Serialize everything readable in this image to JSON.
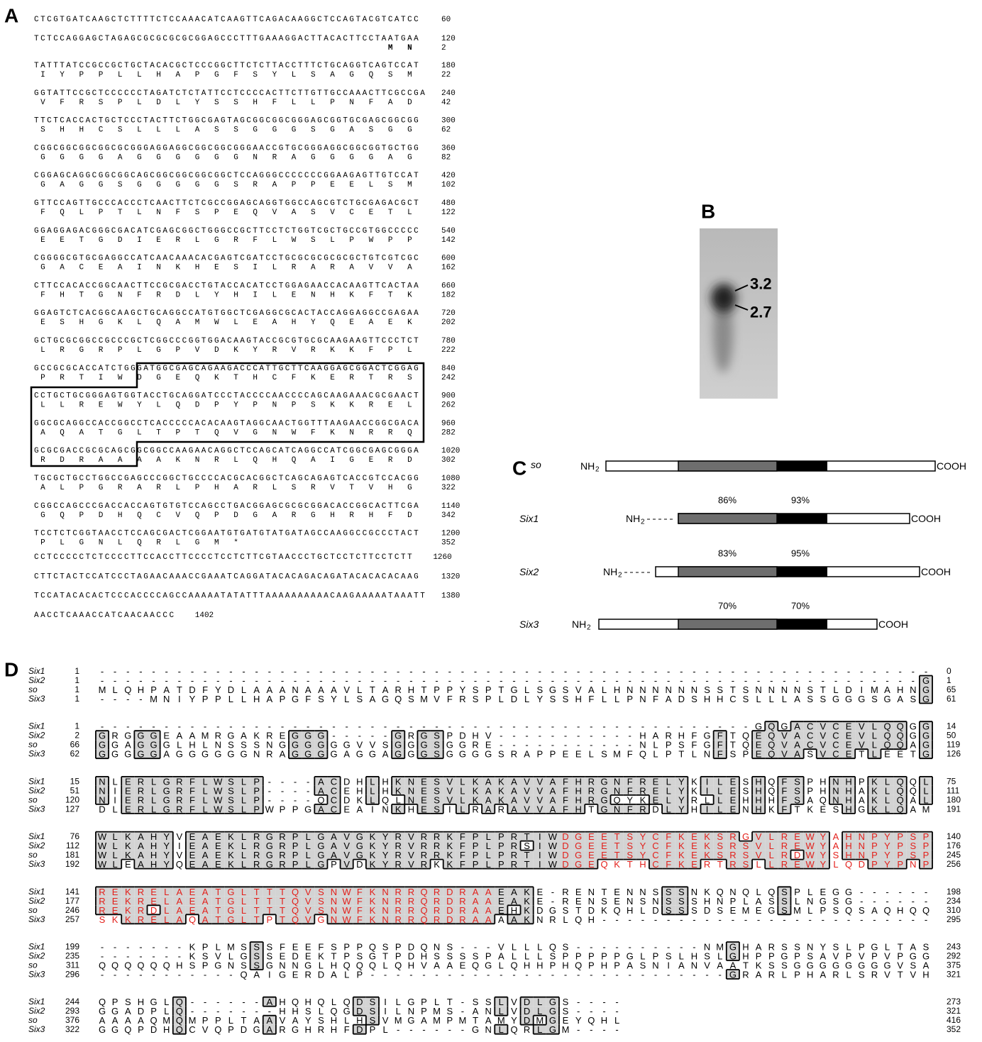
{
  "panel_a": {
    "label": "A",
    "rows": [
      {
        "dna": "CTCGTGATCAAGCTCTTTTCTCCAAACATCAAGTTCAGACAAGGCTCCAGTACGTCATCC",
        "pos": 60
      },
      {
        "dna": "TCTCCAGGAGCTAGAGCGCGCGCGCGGAGCCCTTTGAAAGGACTTACACTTCCTAATGAA",
        "pos": 120,
        "aa": "MN",
        "aa_pos": 2
      },
      {
        "dna": "TATTTATCCGCCGCTGCTACACGCTCCCGGCTTCTCTTACCTTTCTGCAGGTCAGTCCAT",
        "pos": 180,
        "aa": "IYPPLLHAPGFSYLSAGQSM",
        "aa_pos": 22
      },
      {
        "dna": "GGTATTCCGCTCCCCCCTAGATCTCTATTCCTCCCCACTTCTTGTTGCCAAACTTCGCCGA",
        "pos": 240,
        "aa": "VFRSPLDLYSSHFLLPNFAD",
        "aa_pos": 42
      },
      {
        "dna": "TTCTCACCACTGCTCCCTACTTCTGGCGAGTAGCGGCGGCGGGAGCGGTGCGAGCGGCGG",
        "pos": 300,
        "aa": "SHHCSLLLASSGGGSGASGG",
        "aa_pos": 62
      },
      {
        "dna": "CGGCGGCGGCGGCGCGGGAGGAGGCGGCGGCGGGAACCGTGCGGGAGGCGGCGGTGCTGG",
        "pos": 360,
        "aa": "GGGGAGGGGGGNRAGGGGAG",
        "aa_pos": 82
      },
      {
        "dna": "CGGAGCAGGCGGCGGCAGCGGCGGCGGCGGCTCCAGGGCCCCCCCGGAAGAGTTGTCCAT",
        "pos": 420,
        "aa": "GAGGSGGGGGSRAPPEELSM",
        "aa_pos": 102
      },
      {
        "dna": "GTTCCAGTTGCCCACCCTCAACTTCTCGCCGGAGCAGGTGGCCAGCGTCTGCGAGACGCT",
        "pos": 480,
        "aa": "FQLPTLNFSPEQVASVCETL",
        "aa_pos": 122
      },
      {
        "dna": "GGAGGAGACGGGCGACATCGAGCGGCTGGGCCGCTTCCTCTGGTCGCTGCCGTGGCCCCC",
        "pos": 540,
        "aa": "EETGDIERLGRFLWSLPWPP",
        "aa_pos": 142
      },
      {
        "dna": "CGGGGCGTGCGAGGCCATCAACAAACACGAGTCGATCCTGCGCGCGCGCGCTGTCGTCGC",
        "pos": 600,
        "aa": "GACEAINKHESILRARAVVA",
        "aa_pos": 162
      },
      {
        "dna": "CTTCCACACCGGCAACTTCCGCGACCTGTACCACATCCTGGAGAACCACAAGTTCACTAA",
        "pos": 660,
        "aa": "FHTGNFRDLYHILENHKFTK",
        "aa_pos": 182
      },
      {
        "dna": "GGAGTCTCACGGCAAGCTGCAGGCCATGTGGCTCGAGGCGCACTACCAGGAGGCCGAGAA",
        "pos": 720,
        "aa": "ESHGKLQAMWLEAHYQEAEK",
        "aa_pos": 202
      },
      {
        "dna": "GCTGCGCGGCCGCCCGCTCGGCCCGGTGGACAAGTACCGCGTGCGCAAGAAGTTCCCTCT",
        "pos": 780,
        "aa": "LRGRPLGPVDKYRVRKKFPL",
        "aa_pos": 222
      },
      {
        "dna": "GCCGCGCACCATCTGGGATGGCGAGCAGAAGACCCATTGCTTCAAGGAGCGGACTCGGAG",
        "pos": 840,
        "aa": "PRTIWDGEQKTHCFKERTRS",
        "aa_pos": 242
      },
      {
        "dna": "CCTGCTGCGGGAGTGGTACCTGCAGGATCCCTACCCCAACCCCAGCAAGAAACGCGAACT",
        "pos": 900,
        "aa": "LLREWYLQDPYPNPSKKREL",
        "aa_pos": 262
      },
      {
        "dna": "GGCGCAGGCCACCGGCCTCACCCCCACACAAGTAGGCAACTGGTTTAAGAACCGGCGACA",
        "pos": 960,
        "aa": "AQATGLTPTQVGNWFKNRRQ",
        "aa_pos": 282
      },
      {
        "dna": "GCGCGACCGCGCAGCGGCGGCCAAGAACAGGCTCCAGCATCAGGCCATCGGCGAGCGGGA",
        "pos": 1020,
        "aa": "RDRAAAAKNRLQHQAIGERD",
        "aa_pos": 302
      },
      {
        "dna": "TGCGCTGCCTGGCCGAGCCCGGCTGCCCCACGCACGGCTCAGCAGAGTCACCGTCCACGG",
        "pos": 1080,
        "aa": "ALPGRARLPHARLSRVTVHG",
        "aa_pos": 322
      },
      {
        "dna": "CGGCCAGCCCGACCACCAGTGTGTCCAGCCTGACGGAGCGCGCGGACACCGGCACTTCGA",
        "pos": 1140,
        "aa": "GQPDHQCVQPDGARGHRHFD",
        "aa_pos": 342
      },
      {
        "dna": "TCCTCTCGGTAACCTCCAGCGACTCGGAATGTGATGTATGATAGCCAAGGCCGCCCTACT",
        "pos": 1200,
        "aa": "PLGNLQRLGM*",
        "aa_pos": 352
      },
      {
        "dna": "CCTCCCCCTCTCCCCTTCCACCTTCCCCTCCTCTTCGTAACCCTGCTCCTCTTCCTCTT",
        "pos": 1260
      },
      {
        "dna": "CTTCTACTCCATCCCTAGAACAAACCGAAATCAGGATACACAGACAGATACACACACAAG",
        "pos": 1320
      },
      {
        "dna": "TCCATACACACTCCCACCCCAGCCAAAAATATATTTAAAAAAAAAACAAGAAAAATAAATT",
        "pos": 1380
      },
      {
        "dna": "AACCTCAAACCATCAACAACCC",
        "pos": 1402
      }
    ]
  },
  "panel_b": {
    "label": "B",
    "bands": [
      "3.2",
      "2.7"
    ]
  },
  "panel_c": {
    "label": "C",
    "rows": [
      {
        "name": "so",
        "nh": "NH",
        "sub": "2",
        "cooh": "COOH"
      },
      {
        "name": "Six1",
        "nh": "NH",
        "sub": "2",
        "cooh": "COOH",
        "identity": [
          "86%",
          "93%"
        ]
      },
      {
        "name": "Six2",
        "nh": "NH",
        "sub": "2",
        "cooh": "COOH",
        "identity": [
          "83%",
          "95%"
        ]
      },
      {
        "name": "Six3",
        "nh": "NH",
        "sub": "2",
        "cooh": "COOH",
        "identity": [
          "70%",
          "70%"
        ]
      }
    ]
  },
  "panel_d": {
    "label": "D",
    "red_color": "#e3201b",
    "blocks": [
      {
        "rows": [
          {
            "name": "Six1",
            "start": 1,
            "seq": "-----------------------------------------------------------------",
            "end": 0
          },
          {
            "name": "Six2",
            "start": 1,
            "seq": "----------------------------------------------------------------G",
            "end": 1
          },
          {
            "name": "so",
            "start": 1,
            "seq": "MLQHPATDFYDLAAANAAAVLTARHTPPYSPTGLSGSVALHNNNNNNSSTSNNNNSTLDIMAHNG",
            "end": 65
          },
          {
            "name": "Six3",
            "start": 1,
            "seq": "----MNIYPPLLHAPGFSYLSAGQSMVFRSPLDLYSSHFLLPNFADSHHCSLLLASSGGGSGASG",
            "end": 61
          }
        ]
      },
      {
        "rows": [
          {
            "name": "Six1",
            "start": 1,
            "seq": "---------------------------------------------------GQGACVCEVLQQGG",
            "end": 14
          },
          {
            "name": "Six2",
            "start": 2,
            "seq": "GRGGGEAAMRGAKREGGG-----GRGSPDHV-----------HARHFGFTQEQVACVCEVLQQGG",
            "end": 50
          },
          {
            "name": "so",
            "start": 66,
            "seq": "GGAGGGLHLNSSSNGGGGGGVVSGGGSGGRE-----------NLPSFGFTQEQVACVCEVLQQAG",
            "end": 119
          },
          {
            "name": "Six3",
            "start": 62,
            "seq": "GGGGGAGGGGGGNRAGGGGAGGAGGGSGGGGSRAPPEELSMFQLPTLNFSPEQVASVCETLEETG",
            "end": 126
          }
        ]
      },
      {
        "rows": [
          {
            "name": "Six1",
            "start": 15,
            "seq": "NLERLGRFLWSLP----ACDHLHKNESVLKAKAVVAFHRGNFRELYKILESHQFSPHNHPKLQQL",
            "end": 75
          },
          {
            "name": "Six2",
            "start": 51,
            "seq": "NIERLGRFLWSLP----ACEHLHKNESVLKAKAVVAFHRGNFRELYKILESHQFSPHNHAKLQQL",
            "end": 111
          },
          {
            "name": "so",
            "start": 120,
            "seq": "NIERLGRFLWSLP----QCDKLQLNESVLKAKAVVAFHRGQYKELYRLLEHHHFSAQNHAKLQAL",
            "end": 180
          },
          {
            "name": "Six3",
            "start": 127,
            "seq": "DLERLGRFLWSLPWPPGACEAINKHESILRARAVVAFHTGNFRDLYHILENHKFTKESHGKLQAM",
            "end": 191
          }
        ]
      },
      {
        "red_columns": [
          36,
          64
        ],
        "rows": [
          {
            "name": "Six1",
            "start": 76,
            "seq": "WLKAHYVEAEKLRGRPLGAVGKYRVRRKFPLPRTIWDGEETSYCFKEKSRGVLREWYAHNPYPSP",
            "end": 140
          },
          {
            "name": "Six2",
            "start": 112,
            "seq": "WLKAHYIEAEKLRGRPLGAVGKYRVRRKFPLPRSIWDGEETSYCFKEKSRSVLREWYAHNPYPSP",
            "end": 176
          },
          {
            "name": "so",
            "start": 181,
            "seq": "WLKAHYVEAEKLRGRPLGAVGKYRVRRKFPLPRTIWDGEETSYCFKEKSRSVLRDWYSHNPYPSP",
            "end": 245
          },
          {
            "name": "Six3",
            "start": 192,
            "seq": "WLEAHYQEAEKLRGRPLGPVDKYRVRKKFPLPRTIWDGEQKTHCFKERTRSLLREWYLQDPYPNP",
            "end": 256
          }
        ]
      },
      {
        "red_columns": [
          0,
          30
        ],
        "rows": [
          {
            "name": "Six1",
            "start": 141,
            "seq": "REKRELAEATGLTTTQVSNWFKNRRQRDRAAEAKE-RENTENNSSSNKQNQLQSPLEGG------",
            "end": 198
          },
          {
            "name": "Six2",
            "start": 177,
            "seq": "REKRELAEATGLTTTQVSNWFKNRRQRDRAAEAKE-RENSENSNSSSHNPLASSLNGSG------",
            "end": 234
          },
          {
            "name": "so",
            "start": 246,
            "seq": "REKRDLAEATGLTTTQVSNWFKNRRQRDRAAEHKDGSTDKQHLDSSSDSEMEGSMLPSQSAQHQQ",
            "end": 310
          },
          {
            "name": "Six3",
            "start": 257,
            "seq": "SKKRELAQATGLTPTQVGNWFKNRRQRDRAAAAKNRLQH--------------------------",
            "end": 295
          }
        ]
      },
      {
        "rows": [
          {
            "name": "Six1",
            "start": 199,
            "seq": "-------KPLMSSSFEEFSPPQSPDQNS---VLLLQS----------NMGHARSSNYSLPGLTAS",
            "end": 243
          },
          {
            "name": "Six2",
            "start": 235,
            "seq": "-------KSVLGSSEDEKTPSGTPDHSSSSPALLLSPPPPPGLPSLHSLGHPPGPSAVPVPVPGG",
            "end": 292
          },
          {
            "name": "so",
            "start": 311,
            "seq": "QQQQQQHSPGNSSGNNGLHQQQLQHVAAEQGLQHHPHQPHPASNIANVAATKSSGGGGGGGGVSA",
            "end": 375
          },
          {
            "name": "Six3",
            "start": 296,
            "seq": "-----------QAIGERDALP----------------------------GRARLPHARLSRVTVH",
            "end": 321
          }
        ]
      },
      {
        "rows": [
          {
            "name": "Six1",
            "start": 244,
            "seq": "QPSHGLQ------AHQHQLQDSILGPLT-SSLVDLGS----",
            "end": 273
          },
          {
            "name": "Six2",
            "start": 293,
            "seq": "GGADPLQ-------HHSLQGDSILNPMS-ANLVDLGS----",
            "end": 321
          },
          {
            "name": "so",
            "start": 376,
            "seq": "AAAAQMQMPPLTAAVAYSHLHSVMGAMPMTAMYDMGEYQHL",
            "end": 416
          },
          {
            "name": "Six3",
            "start": 322,
            "seq": "GGQPDHQCVQPDGARGHRHFDPL------GNLQRLGM----",
            "end": 352
          }
        ]
      }
    ]
  }
}
